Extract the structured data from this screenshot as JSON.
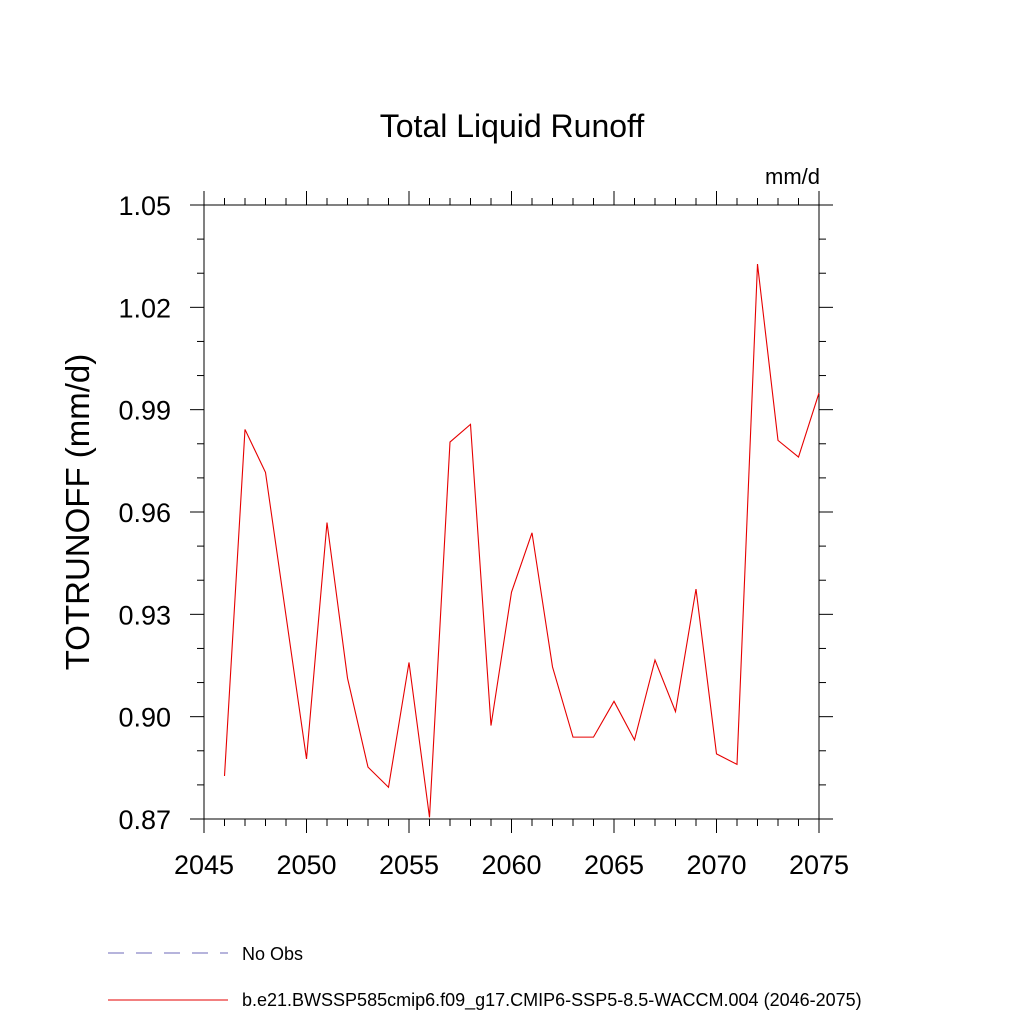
{
  "chart_data": {
    "type": "line",
    "title": "Total Liquid Runoff",
    "units_label": "mm/d",
    "ylabel": "TOTRUNOFF  (mm/d)",
    "xlabel": "",
    "xlim": [
      2045,
      2075
    ],
    "ylim": [
      0.87,
      1.05
    ],
    "x_ticks": [
      2045,
      2050,
      2055,
      2060,
      2065,
      2070,
      2075
    ],
    "y_ticks": [
      0.87,
      0.9,
      0.93,
      0.96,
      0.99,
      1.02,
      1.05
    ],
    "x_tick_labels": [
      "2045",
      "2050",
      "2055",
      "2060",
      "2065",
      "2070",
      "2075"
    ],
    "y_tick_labels": [
      "0.87",
      "0.90",
      "0.93",
      "0.96",
      "0.99",
      "1.02",
      "1.05"
    ],
    "grid": false,
    "legend_position": "bottom",
    "series": [
      {
        "name": "b.e21.BWSSP585cmip6.f09_g17.CMIP6-SSP5-8.5-WACCM.004 (2046-2075)",
        "color": "#e60000",
        "style": "solid",
        "x": [
          2046,
          2047,
          2048,
          2049,
          2050,
          2051,
          2052,
          2053,
          2054,
          2055,
          2056,
          2057,
          2058,
          2059,
          2060,
          2061,
          2062,
          2063,
          2064,
          2065,
          2066,
          2067,
          2068,
          2069,
          2070,
          2071,
          2072,
          2073,
          2074,
          2075
        ],
        "y": [
          0.8826,
          0.9842,
          0.9716,
          0.9296,
          0.8876,
          0.9569,
          0.9113,
          0.8852,
          0.8793,
          0.9159,
          0.8705,
          0.9805,
          0.9857,
          0.8974,
          0.9365,
          0.9539,
          0.9146,
          0.894,
          0.894,
          0.9045,
          0.8932,
          0.9166,
          0.9015,
          0.9374,
          0.8891,
          0.886,
          1.0327,
          0.981,
          0.9761,
          0.9949
        ]
      },
      {
        "name": "No Obs",
        "color": "#6e6ab8",
        "style": "dashed",
        "x": [],
        "y": []
      }
    ]
  }
}
